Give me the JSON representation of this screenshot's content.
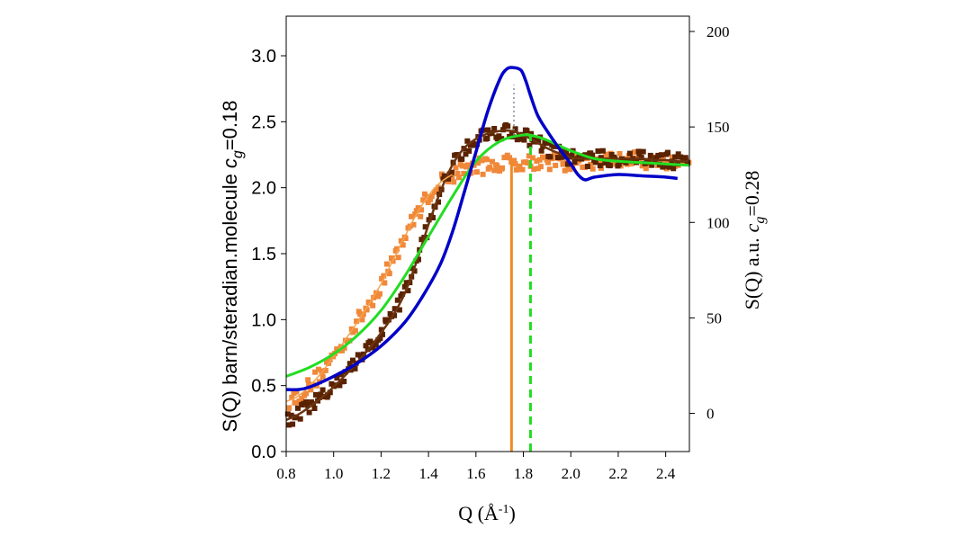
{
  "chart_data": {
    "type": "scatter",
    "xlabel": "Q (Å",
    "xlabel_sup": "-1",
    "xlabel_close": ")",
    "ylabel_left": "S(Q) barn/steradian.molecule",
    "ylabel_left_c": "c",
    "ylabel_left_sub": "g",
    "ylabel_left_value": "=0.18",
    "ylabel_right": "S(Q) a.u.",
    "ylabel_right_c": "c",
    "ylabel_right_sub": "g",
    "ylabel_right_value": "=0.28",
    "xlim": [
      0.8,
      2.5
    ],
    "ylim_left": [
      0.0,
      3.3
    ],
    "ylim_right": [
      -20,
      208
    ],
    "x_ticks": [
      "0.8",
      "1.0",
      "1.2",
      "1.4",
      "1.6",
      "1.8",
      "2.0",
      "2.2",
      "2.4"
    ],
    "y_left_ticks": [
      "0.0",
      "0.5",
      "1.0",
      "1.5",
      "2.0",
      "2.5",
      "3.0"
    ],
    "y_right_ticks": [
      "0",
      "50",
      "100",
      "150",
      "200"
    ],
    "colors": {
      "blue": "#0000c8",
      "green": "#22dd22",
      "brown": "#5a2200",
      "orange": "#f0883a",
      "orange_line": "#f5a34a",
      "brown_line": "#6b3410"
    },
    "series": [
      {
        "name": "blue curve",
        "kind": "line",
        "axis": "left",
        "x": [
          0.8,
          0.85,
          0.9,
          1.0,
          1.1,
          1.2,
          1.3,
          1.38,
          1.45,
          1.5,
          1.55,
          1.6,
          1.65,
          1.7,
          1.73,
          1.76,
          1.79,
          1.81,
          1.83,
          1.86,
          1.9,
          1.95,
          2.0,
          2.03,
          2.06,
          2.1,
          2.2,
          2.3,
          2.4,
          2.45
        ],
        "y": [
          0.47,
          0.47,
          0.49,
          0.57,
          0.67,
          0.8,
          0.98,
          1.19,
          1.42,
          1.66,
          1.96,
          2.27,
          2.58,
          2.82,
          2.9,
          2.91,
          2.89,
          2.81,
          2.7,
          2.55,
          2.43,
          2.3,
          2.18,
          2.1,
          2.06,
          2.08,
          2.1,
          2.09,
          2.08,
          2.07
        ]
      },
      {
        "name": "green curve",
        "kind": "line",
        "axis": "left",
        "x": [
          0.8,
          0.9,
          1.0,
          1.1,
          1.2,
          1.3,
          1.4,
          1.5,
          1.6,
          1.7,
          1.8,
          1.85,
          1.9,
          2.0,
          2.1,
          2.2,
          2.3,
          2.4,
          2.5
        ],
        "y": [
          0.57,
          0.64,
          0.74,
          0.88,
          1.07,
          1.33,
          1.63,
          1.93,
          2.2,
          2.35,
          2.4,
          2.39,
          2.36,
          2.28,
          2.22,
          2.2,
          2.19,
          2.18,
          2.17
        ]
      },
      {
        "name": "orange squares",
        "kind": "scatter",
        "axis": "left",
        "x": [
          0.8,
          0.85,
          0.9,
          0.95,
          1.0,
          1.05,
          1.1,
          1.15,
          1.2,
          1.25,
          1.3,
          1.35,
          1.4,
          1.45,
          1.5,
          1.55,
          1.6,
          1.65,
          1.7,
          1.75,
          1.8,
          1.85,
          1.9,
          1.95,
          2.0,
          2.05,
          2.1,
          2.15,
          2.2,
          2.25,
          2.3,
          2.35,
          2.4,
          2.45,
          2.5
        ],
        "y": [
          0.38,
          0.42,
          0.5,
          0.6,
          0.72,
          0.85,
          0.98,
          1.12,
          1.27,
          1.45,
          1.63,
          1.8,
          1.94,
          2.04,
          2.1,
          2.14,
          2.16,
          2.17,
          2.18,
          2.19,
          2.2,
          2.2,
          2.2,
          2.19,
          2.19,
          2.2,
          2.2,
          2.21,
          2.21,
          2.21,
          2.21,
          2.2,
          2.2,
          2.2,
          2.2
        ]
      },
      {
        "name": "brown squares",
        "kind": "scatter",
        "axis": "left",
        "x": [
          0.8,
          0.85,
          0.9,
          0.95,
          1.0,
          1.05,
          1.1,
          1.15,
          1.2,
          1.25,
          1.3,
          1.35,
          1.4,
          1.45,
          1.5,
          1.55,
          1.6,
          1.65,
          1.7,
          1.75,
          1.8,
          1.85,
          1.9,
          1.95,
          2.0,
          2.05,
          2.1,
          2.15,
          2.2,
          2.25,
          2.3,
          2.35,
          2.4,
          2.45,
          2.5
        ],
        "y": [
          0.24,
          0.28,
          0.34,
          0.41,
          0.49,
          0.58,
          0.68,
          0.78,
          0.9,
          1.03,
          1.2,
          1.44,
          1.72,
          1.97,
          2.17,
          2.3,
          2.37,
          2.41,
          2.43,
          2.43,
          2.4,
          2.35,
          2.3,
          2.26,
          2.23,
          2.22,
          2.22,
          2.22,
          2.22,
          2.22,
          2.22,
          2.21,
          2.21,
          2.2,
          2.2
        ]
      }
    ],
    "vertical_markers": [
      {
        "name": "orange solid marker",
        "x": 1.75,
        "y_top": 2.2,
        "style": "solid"
      },
      {
        "name": "green dashed marker",
        "x": 1.83,
        "y_top": 2.39,
        "style": "dashed"
      },
      {
        "name": "grey dotted marker",
        "x": 1.76,
        "y_bottom": 2.4,
        "y_top": 2.78,
        "style": "dotted"
      }
    ]
  }
}
